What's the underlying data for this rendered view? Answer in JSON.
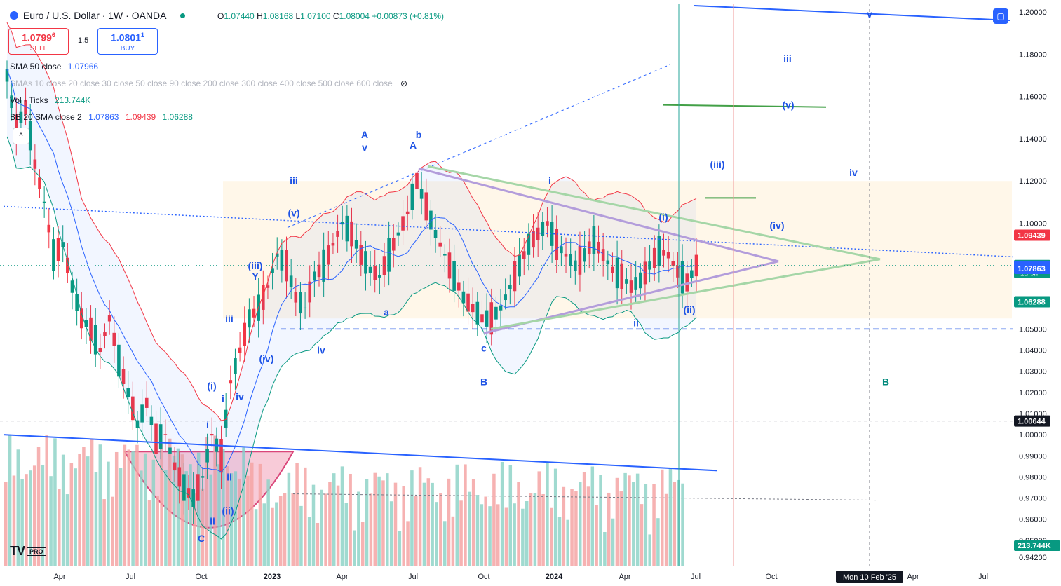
{
  "header": {
    "symbol_title": "Euro / U.S. Dollar · 1W · OANDA",
    "ohlc": {
      "o_label": "O",
      "o": "1.07440",
      "h_label": "H",
      "h": "1.08168",
      "l_label": "L",
      "l": "1.07100",
      "c_label": "C",
      "c": "1.08004",
      "change": "+0.00873 (+0.81%)"
    }
  },
  "trade": {
    "sell_price": "1.0799",
    "sell_price_small": "6",
    "sell_label": "SELL",
    "spread": "1.5",
    "buy_price": "1.0801",
    "buy_price_small": "1",
    "buy_label": "BUY"
  },
  "indicators": {
    "sma50": {
      "name": "SMA 50 close",
      "value": "1.07966"
    },
    "smas": {
      "name": "SMAs 10 close 20 close 30 close 50 close 90 close 200 close 300 close 400 close 500 close 600 close"
    },
    "vol": {
      "name": "Vol · Ticks",
      "value": "213.744K"
    },
    "bb": {
      "name": "BB 20 SMA close 2",
      "basis": "1.07863",
      "upper": "1.09439",
      "lower": "1.06288"
    }
  },
  "branding": {
    "logo": "TV",
    "pro": "PRO"
  },
  "colors": {
    "up": "#089981",
    "down": "#f23645",
    "accent": "#2962ff",
    "bb_band": "#2962ff",
    "bb_upper": "#f23645",
    "bb_lower": "#089981",
    "vol_up": "#8fd3c8",
    "vol_down": "#f5a5a5"
  },
  "chart_data": {
    "type": "candlestick",
    "symbol": "EURUSD",
    "interval": "1W",
    "ylim": [
      0.94,
      1.2
    ],
    "y_ticks": [
      "1.20000",
      "1.18000",
      "1.16000",
      "1.14000",
      "1.12000",
      "1.10000",
      "1.09439",
      "1.08004",
      "1.07966",
      "1.07863",
      "1.06288",
      "1.05000",
      "1.04000",
      "1.03000",
      "1.02000",
      "1.01000",
      "1.00644",
      "1.00000",
      "0.99000",
      "0.98000",
      "0.97000",
      "0.96000",
      "0.95000",
      "0.94200"
    ],
    "x_ticks": [
      "Apr",
      "Jul",
      "Oct",
      "2023",
      "Apr",
      "Jul",
      "Oct",
      "2024",
      "Apr",
      "Jul",
      "Oct",
      "Apr",
      "Jul"
    ],
    "price_tags": [
      {
        "value": 1.09439,
        "label": "1.09439",
        "color": "#f23645"
      },
      {
        "value": 1.08004,
        "label": "1.08004",
        "sub": "1d 9h",
        "color": "#089981"
      },
      {
        "value": 1.07966,
        "label": "1.07966",
        "color": "#2962ff"
      },
      {
        "value": 1.07863,
        "label": "1.07863",
        "color": "#2962ff"
      },
      {
        "value": 1.06288,
        "label": "1.06288",
        "color": "#089981"
      }
    ],
    "crosshair_price": "1.00644",
    "crosshair_time": "Mon 10 Feb '25",
    "volume_tag": "213.744K",
    "candles_anchor": [
      [
        0,
        1.17
      ],
      [
        2,
        1.145
      ],
      [
        4,
        1.155
      ],
      [
        6,
        1.128
      ],
      [
        8,
        1.11
      ],
      [
        10,
        1.085
      ],
      [
        12,
        1.09
      ],
      [
        14,
        1.07
      ],
      [
        16,
        1.055
      ],
      [
        18,
        1.05
      ],
      [
        20,
        1.04
      ],
      [
        22,
        1.055
      ],
      [
        24,
        1.035
      ],
      [
        26,
        1.02
      ],
      [
        28,
        1.005
      ],
      [
        30,
        1.015
      ],
      [
        32,
        0.998
      ],
      [
        34,
        1.0
      ],
      [
        36,
        0.985
      ],
      [
        38,
        0.975
      ],
      [
        40,
        0.97
      ],
      [
        42,
        0.98
      ],
      [
        44,
        1.0
      ],
      [
        46,
        0.99
      ],
      [
        48,
        1.025
      ],
      [
        50,
        1.04
      ],
      [
        52,
        1.055
      ],
      [
        54,
        1.06
      ],
      [
        56,
        1.07
      ],
      [
        58,
        1.085
      ],
      [
        60,
        1.08
      ],
      [
        62,
        1.065
      ],
      [
        64,
        1.06
      ],
      [
        66,
        1.075
      ],
      [
        68,
        1.08
      ],
      [
        70,
        1.09
      ],
      [
        72,
        1.1
      ],
      [
        74,
        1.095
      ],
      [
        76,
        1.085
      ],
      [
        78,
        1.078
      ],
      [
        80,
        1.075
      ],
      [
        82,
        1.085
      ],
      [
        84,
        1.095
      ],
      [
        86,
        1.105
      ],
      [
        88,
        1.12
      ],
      [
        90,
        1.108
      ],
      [
        92,
        1.095
      ],
      [
        94,
        1.085
      ],
      [
        96,
        1.075
      ],
      [
        98,
        1.065
      ],
      [
        100,
        1.06
      ],
      [
        102,
        1.055
      ],
      [
        104,
        1.055
      ],
      [
        106,
        1.06
      ],
      [
        108,
        1.07
      ],
      [
        110,
        1.08
      ],
      [
        112,
        1.09
      ],
      [
        114,
        1.095
      ],
      [
        116,
        1.1
      ],
      [
        118,
        1.09
      ],
      [
        120,
        1.085
      ],
      [
        122,
        1.08
      ],
      [
        124,
        1.085
      ],
      [
        126,
        1.092
      ],
      [
        128,
        1.085
      ],
      [
        130,
        1.078
      ],
      [
        132,
        1.075
      ],
      [
        134,
        1.07
      ],
      [
        136,
        1.073
      ],
      [
        138,
        1.08
      ],
      [
        140,
        1.087
      ],
      [
        142,
        1.085
      ],
      [
        144,
        1.077
      ],
      [
        146,
        1.072
      ],
      [
        148,
        1.08
      ]
    ],
    "wave_labels": [
      {
        "t": "A",
        "x": 520,
        "y": 1.142
      },
      {
        "t": "v",
        "x": 520,
        "y": 1.136
      },
      {
        "t": "b",
        "x": 597,
        "y": 1.142
      },
      {
        "t": "A",
        "x": 589,
        "y": 1.137
      },
      {
        "t": "iii",
        "x": 419,
        "y": 1.12
      },
      {
        "t": "(v)",
        "x": 419,
        "y": 1.105
      },
      {
        "t": "(iii)",
        "x": 364,
        "y": 1.08
      },
      {
        "t": "Y",
        "x": 364,
        "y": 1.075
      },
      {
        "t": "iii",
        "x": 327,
        "y": 1.055
      },
      {
        "t": "(iv)",
        "x": 380,
        "y": 1.036
      },
      {
        "t": "iv",
        "x": 458,
        "y": 1.04
      },
      {
        "t": "iv",
        "x": 342,
        "y": 1.018
      },
      {
        "t": "(i)",
        "x": 302,
        "y": 1.023
      },
      {
        "t": "i",
        "x": 318,
        "y": 1.017
      },
      {
        "t": "i",
        "x": 296,
        "y": 1.005
      },
      {
        "t": "ii",
        "x": 327,
        "y": 0.98
      },
      {
        "t": "(ii)",
        "x": 325,
        "y": 0.964
      },
      {
        "t": "ii",
        "x": 303,
        "y": 0.959
      },
      {
        "t": "C",
        "x": 287,
        "y": 0.951
      },
      {
        "t": "a",
        "x": 551,
        "y": 1.058
      },
      {
        "t": "c",
        "x": 690,
        "y": 1.041
      },
      {
        "t": "B",
        "x": 690,
        "y": 1.025
      },
      {
        "t": "i",
        "x": 784,
        "y": 1.12
      },
      {
        "t": "(i)",
        "x": 946,
        "y": 1.103
      },
      {
        "t": "ii",
        "x": 907,
        "y": 1.053
      },
      {
        "t": "(ii)",
        "x": 983,
        "y": 1.059
      },
      {
        "t": "(iii)",
        "x": 1023,
        "y": 1.128
      },
      {
        "t": "(iv)",
        "x": 1108,
        "y": 1.099
      },
      {
        "t": "iii",
        "x": 1123,
        "y": 1.178
      },
      {
        "t": "(v)",
        "x": 1124,
        "y": 1.156
      },
      {
        "t": "iv",
        "x": 1217,
        "y": 1.124
      },
      {
        "t": "v",
        "x": 1240,
        "y": 1.199
      },
      {
        "t": "B",
        "x": 1263,
        "y": 1.025
      }
    ]
  }
}
